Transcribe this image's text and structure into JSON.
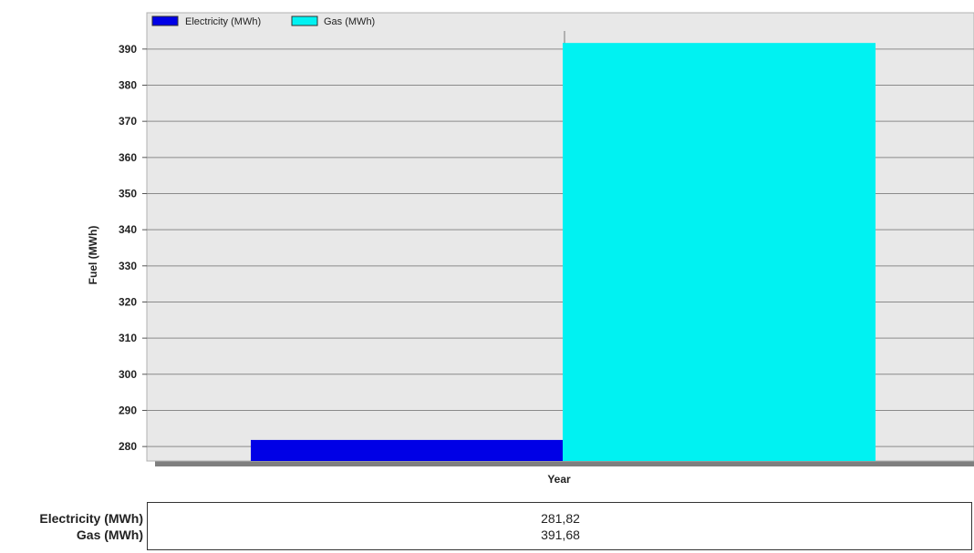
{
  "chart_data": {
    "type": "bar",
    "ylabel": "Fuel (MWh)",
    "xlabel": "Year",
    "ylim": [
      276,
      395
    ],
    "yticks": [
      280,
      290,
      300,
      310,
      320,
      330,
      340,
      350,
      360,
      370,
      380,
      390
    ],
    "grid": true,
    "legend": "top-left",
    "series": [
      {
        "name": "Electricity (MWh)",
        "value": 281.82,
        "color": "#0000e6"
      },
      {
        "name": "Gas (MWh)",
        "value": 391.68,
        "color": "#00f2f2"
      }
    ]
  },
  "summary": {
    "rows": [
      {
        "label": "Electricity (MWh)",
        "value": "281,82"
      },
      {
        "label": "Gas (MWh)",
        "value": "391,68"
      }
    ]
  }
}
